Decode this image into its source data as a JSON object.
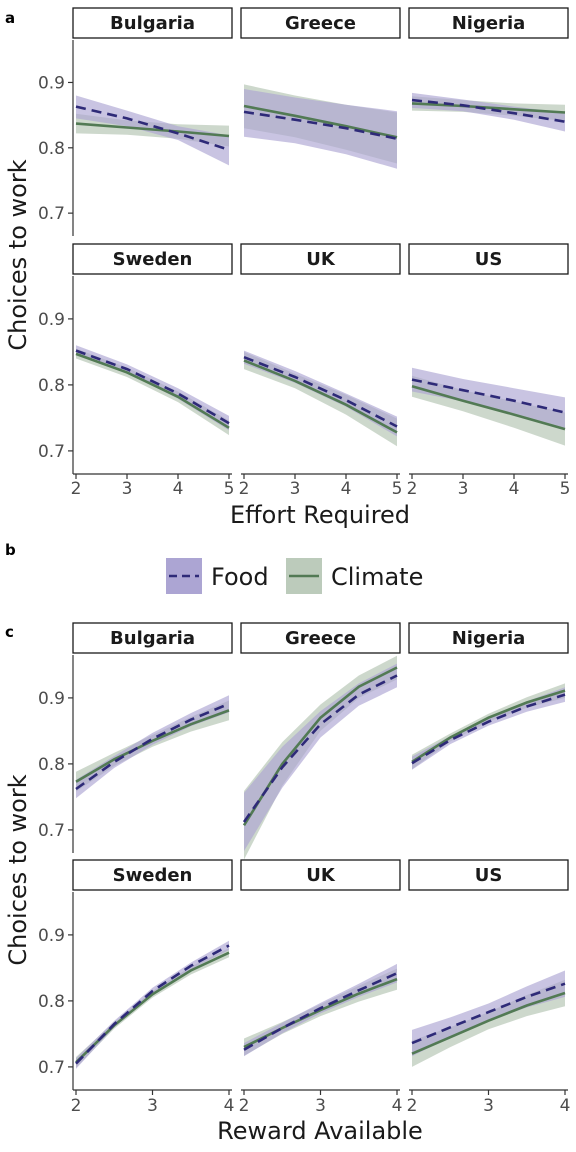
{
  "colors": {
    "food_line": "#2e2a78",
    "food_band": "#aca5d3",
    "climate_line": "#527a54",
    "climate_band": "#bccbbb",
    "axis": "#333333",
    "strip_border": "#1a1a1a"
  },
  "figure": {
    "panel_labels": [
      "a",
      "b",
      "c"
    ],
    "legend": {
      "items": [
        {
          "key": "food",
          "label": "Food",
          "style": "dashed"
        },
        {
          "key": "climate",
          "label": "Climate",
          "style": "solid"
        }
      ]
    }
  },
  "chart_data": [
    {
      "type": "line",
      "panel": "a",
      "xlabel": "Effort Required",
      "ylabel": "Choices to work",
      "xlim": [
        2,
        5
      ],
      "ylim": [
        0.665,
        0.965
      ],
      "xticks": [
        "2",
        "3",
        "4",
        "5"
      ],
      "yticks": [
        "0.7",
        "0.8",
        "0.9"
      ],
      "grid": false,
      "facets": [
        {
          "name": "Bulgaria",
          "x": [
            2,
            3,
            4,
            5
          ],
          "series": [
            {
              "name": "Food",
              "values": [
                0.863,
                0.845,
                0.822,
                0.797
              ],
              "lower": [
                0.845,
                0.833,
                0.812,
                0.773
              ],
              "upper": [
                0.88,
                0.857,
                0.833,
                0.819
              ]
            },
            {
              "name": "Climate",
              "values": [
                0.837,
                0.831,
                0.825,
                0.818
              ],
              "lower": [
                0.822,
                0.82,
                0.814,
                0.802
              ],
              "upper": [
                0.852,
                0.842,
                0.836,
                0.834
              ]
            }
          ]
        },
        {
          "name": "Greece",
          "x": [
            2,
            3,
            4,
            5
          ],
          "series": [
            {
              "name": "Food",
              "values": [
                0.855,
                0.843,
                0.83,
                0.814
              ],
              "lower": [
                0.817,
                0.807,
                0.79,
                0.768
              ],
              "upper": [
                0.89,
                0.877,
                0.866,
                0.856
              ]
            },
            {
              "name": "Climate",
              "values": [
                0.864,
                0.849,
                0.833,
                0.816
              ],
              "lower": [
                0.83,
                0.816,
                0.797,
                0.776
              ],
              "upper": [
                0.897,
                0.88,
                0.866,
                0.854
              ]
            }
          ]
        },
        {
          "name": "Nigeria",
          "x": [
            2,
            3,
            4,
            5
          ],
          "series": [
            {
              "name": "Food",
              "values": [
                0.873,
                0.865,
                0.853,
                0.84
              ],
              "lower": [
                0.861,
                0.856,
                0.843,
                0.825
              ],
              "upper": [
                0.884,
                0.874,
                0.863,
                0.854
              ]
            },
            {
              "name": "Climate",
              "values": [
                0.868,
                0.864,
                0.859,
                0.854
              ],
              "lower": [
                0.857,
                0.855,
                0.849,
                0.841
              ],
              "upper": [
                0.879,
                0.873,
                0.868,
                0.866
              ]
            }
          ]
        },
        {
          "name": "Sweden",
          "x": [
            2,
            3,
            4,
            5
          ],
          "series": [
            {
              "name": "Food",
              "values": [
                0.852,
                0.824,
                0.787,
                0.742
              ],
              "lower": [
                0.845,
                0.818,
                0.779,
                0.731
              ],
              "upper": [
                0.86,
                0.831,
                0.795,
                0.753
              ]
            },
            {
              "name": "Climate",
              "values": [
                0.847,
                0.819,
                0.782,
                0.735
              ],
              "lower": [
                0.84,
                0.812,
                0.774,
                0.724
              ],
              "upper": [
                0.855,
                0.826,
                0.79,
                0.746
              ]
            }
          ]
        },
        {
          "name": "UK",
          "x": [
            2,
            3,
            4,
            5
          ],
          "series": [
            {
              "name": "Food",
              "values": [
                0.842,
                0.812,
                0.777,
                0.737
              ],
              "lower": [
                0.832,
                0.803,
                0.767,
                0.722
              ],
              "upper": [
                0.852,
                0.821,
                0.787,
                0.752
              ]
            },
            {
              "name": "Climate",
              "values": [
                0.837,
                0.806,
                0.77,
                0.728
              ],
              "lower": [
                0.824,
                0.795,
                0.755,
                0.707
              ],
              "upper": [
                0.85,
                0.817,
                0.785,
                0.749
              ]
            }
          ]
        },
        {
          "name": "US",
          "x": [
            2,
            3,
            4,
            5
          ],
          "series": [
            {
              "name": "Food",
              "values": [
                0.808,
                0.792,
                0.776,
                0.758
              ],
              "lower": [
                0.79,
                0.775,
                0.757,
                0.735
              ],
              "upper": [
                0.826,
                0.809,
                0.795,
                0.781
              ]
            },
            {
              "name": "Climate",
              "values": [
                0.798,
                0.776,
                0.755,
                0.733
              ],
              "lower": [
                0.782,
                0.76,
                0.735,
                0.708
              ],
              "upper": [
                0.814,
                0.792,
                0.775,
                0.758
              ]
            }
          ]
        }
      ]
    },
    {
      "type": "line",
      "panel": "c",
      "xlabel": "Reward Available",
      "ylabel": "Choices to work",
      "xlim": [
        2,
        4
      ],
      "ylim": [
        0.665,
        0.965
      ],
      "xticks": [
        "2",
        "3",
        "4"
      ],
      "yticks": [
        "0.7",
        "0.8",
        "0.9"
      ],
      "grid": false,
      "facets": [
        {
          "name": "Bulgaria",
          "x": [
            2,
            2.5,
            3,
            3.5,
            4
          ],
          "series": [
            {
              "name": "Food",
              "values": [
                0.762,
                0.803,
                0.838,
                0.867,
                0.891
              ],
              "lower": [
                0.748,
                0.794,
                0.829,
                0.857,
                0.878
              ],
              "upper": [
                0.776,
                0.812,
                0.847,
                0.877,
                0.904
              ]
            },
            {
              "name": "Climate",
              "values": [
                0.773,
                0.807,
                0.835,
                0.86,
                0.881
              ],
              "lower": [
                0.758,
                0.797,
                0.826,
                0.849,
                0.866
              ],
              "upper": [
                0.788,
                0.817,
                0.844,
                0.871,
                0.896
              ]
            }
          ]
        },
        {
          "name": "Greece",
          "x": [
            2,
            2.5,
            3,
            3.5,
            4
          ],
          "series": [
            {
              "name": "Food",
              "values": [
                0.712,
                0.795,
                0.86,
                0.905,
                0.934
              ],
              "lower": [
                0.668,
                0.764,
                0.84,
                0.888,
                0.916
              ],
              "upper": [
                0.756,
                0.826,
                0.88,
                0.922,
                0.952
              ]
            },
            {
              "name": "Climate",
              "values": [
                0.707,
                0.8,
                0.87,
                0.917,
                0.946
              ],
              "lower": [
                0.655,
                0.767,
                0.85,
                0.9,
                0.928
              ],
              "upper": [
                0.759,
                0.833,
                0.89,
                0.934,
                0.964
              ]
            }
          ]
        },
        {
          "name": "Nigeria",
          "x": [
            2,
            2.5,
            3,
            3.5,
            4
          ],
          "series": [
            {
              "name": "Food",
              "values": [
                0.801,
                0.836,
                0.864,
                0.887,
                0.905
              ],
              "lower": [
                0.791,
                0.83,
                0.858,
                0.879,
                0.894
              ],
              "upper": [
                0.811,
                0.842,
                0.87,
                0.895,
                0.916
              ]
            },
            {
              "name": "Climate",
              "values": [
                0.803,
                0.84,
                0.87,
                0.893,
                0.911
              ],
              "lower": [
                0.792,
                0.834,
                0.864,
                0.885,
                0.9
              ],
              "upper": [
                0.814,
                0.846,
                0.876,
                0.901,
                0.922
              ]
            }
          ]
        },
        {
          "name": "Sweden",
          "x": [
            2,
            2.5,
            3,
            3.5,
            4
          ],
          "series": [
            {
              "name": "Food",
              "values": [
                0.705,
                0.765,
                0.815,
                0.853,
                0.884
              ],
              "lower": [
                0.697,
                0.76,
                0.81,
                0.848,
                0.877
              ],
              "upper": [
                0.713,
                0.77,
                0.82,
                0.858,
                0.891
              ]
            },
            {
              "name": "Climate",
              "values": [
                0.707,
                0.763,
                0.81,
                0.846,
                0.873
              ],
              "lower": [
                0.699,
                0.758,
                0.805,
                0.84,
                0.866
              ],
              "upper": [
                0.715,
                0.768,
                0.815,
                0.852,
                0.88
              ]
            }
          ]
        },
        {
          "name": "UK",
          "x": [
            2,
            2.5,
            3,
            3.5,
            4
          ],
          "series": [
            {
              "name": "Food",
              "values": [
                0.726,
                0.759,
                0.789,
                0.816,
                0.842
              ],
              "lower": [
                0.716,
                0.751,
                0.781,
                0.806,
                0.828
              ],
              "upper": [
                0.736,
                0.767,
                0.797,
                0.826,
                0.856
              ]
            },
            {
              "name": "Climate",
              "values": [
                0.73,
                0.759,
                0.786,
                0.811,
                0.833
              ],
              "lower": [
                0.717,
                0.75,
                0.777,
                0.799,
                0.817
              ],
              "upper": [
                0.743,
                0.768,
                0.795,
                0.823,
                0.849
              ]
            }
          ]
        },
        {
          "name": "US",
          "x": [
            2,
            2.5,
            3,
            3.5,
            4
          ],
          "series": [
            {
              "name": "Food",
              "values": [
                0.736,
                0.76,
                0.783,
                0.806,
                0.826
              ],
              "lower": [
                0.716,
                0.745,
                0.77,
                0.79,
                0.806
              ],
              "upper": [
                0.756,
                0.775,
                0.796,
                0.822,
                0.846
              ]
            },
            {
              "name": "Climate",
              "values": [
                0.72,
                0.745,
                0.77,
                0.793,
                0.812
              ],
              "lower": [
                0.7,
                0.73,
                0.757,
                0.777,
                0.792
              ],
              "upper": [
                0.74,
                0.76,
                0.783,
                0.809,
                0.832
              ]
            }
          ]
        }
      ]
    }
  ]
}
